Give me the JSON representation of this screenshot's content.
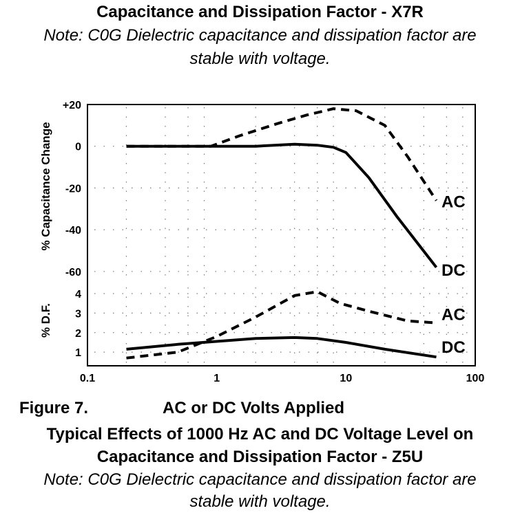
{
  "header": {
    "title": "Capacitance and Dissipation Factor - X7R",
    "note_line1": "Note: C0G Dielectric capacitance and dissipation factor are",
    "note_line2": "stable with voltage."
  },
  "footer": {
    "figure_label": "Figure 7.",
    "figure_caption": "AC or DC Volts Applied",
    "caption_line1": "Typical Effects of 1000 Hz AC and DC Voltage Level on",
    "caption_line2": "Capacitance and Dissipation Factor - Z5U",
    "note_line1": "Note: C0G Dielectric capacitance and dissipation factor are",
    "note_line2": "stable with voltage."
  },
  "chart_data": [
    {
      "type": "line",
      "panel": "capacitance",
      "ylabel": "% Capacitance Change",
      "xscale": "log",
      "xlim": [
        0.1,
        100
      ],
      "ylim": [
        -65,
        20
      ],
      "ytick_labels": [
        {
          "value": 20,
          "label": "+20"
        },
        {
          "value": 0,
          "label": "0"
        },
        {
          "value": -20,
          "label": "-20"
        },
        {
          "value": -40,
          "label": "-40"
        },
        {
          "value": -60,
          "label": "-60"
        }
      ],
      "grid": "dotted",
      "series": [
        {
          "name": "AC",
          "style": "dashed",
          "x": [
            0.2,
            0.9,
            1.5,
            3,
            5,
            8,
            12,
            20,
            30,
            50
          ],
          "y": [
            0,
            0,
            5,
            11,
            15,
            18,
            17,
            10,
            -5,
            -26
          ]
        },
        {
          "name": "DC",
          "style": "solid",
          "x": [
            0.2,
            1,
            2,
            4,
            6,
            8,
            10,
            15,
            25,
            50
          ],
          "y": [
            0,
            0,
            0,
            1,
            0.5,
            -0.5,
            -3,
            -15,
            -34,
            -58
          ]
        }
      ]
    },
    {
      "type": "line",
      "panel": "dissipation_factor",
      "ylabel": "% D.F.",
      "xlabel": "",
      "xscale": "log",
      "xlim": [
        0.1,
        100
      ],
      "ylim": [
        0.3,
        4.6
      ],
      "ytick_labels": [
        {
          "value": 4,
          "label": "4"
        },
        {
          "value": 3,
          "label": "3"
        },
        {
          "value": 2,
          "label": "2"
        },
        {
          "value": 1,
          "label": "1"
        }
      ],
      "xtick_labels": [
        {
          "value": 0.1,
          "label": "0.1"
        },
        {
          "value": 1,
          "label": "1"
        },
        {
          "value": 10,
          "label": "10"
        },
        {
          "value": 100,
          "label": "100"
        }
      ],
      "grid": "dotted",
      "series": [
        {
          "name": "AC",
          "style": "dashed",
          "x": [
            0.2,
            0.5,
            1,
            2,
            4,
            6,
            9,
            15,
            30,
            50
          ],
          "y": [
            0.7,
            1.0,
            1.8,
            2.8,
            3.9,
            4.1,
            3.5,
            3.1,
            2.6,
            2.5
          ]
        },
        {
          "name": "DC",
          "style": "solid",
          "x": [
            0.2,
            0.5,
            1,
            2,
            4,
            6,
            10,
            20,
            50
          ],
          "y": [
            1.15,
            1.4,
            1.55,
            1.7,
            1.75,
            1.7,
            1.5,
            1.15,
            0.75
          ]
        }
      ]
    }
  ]
}
